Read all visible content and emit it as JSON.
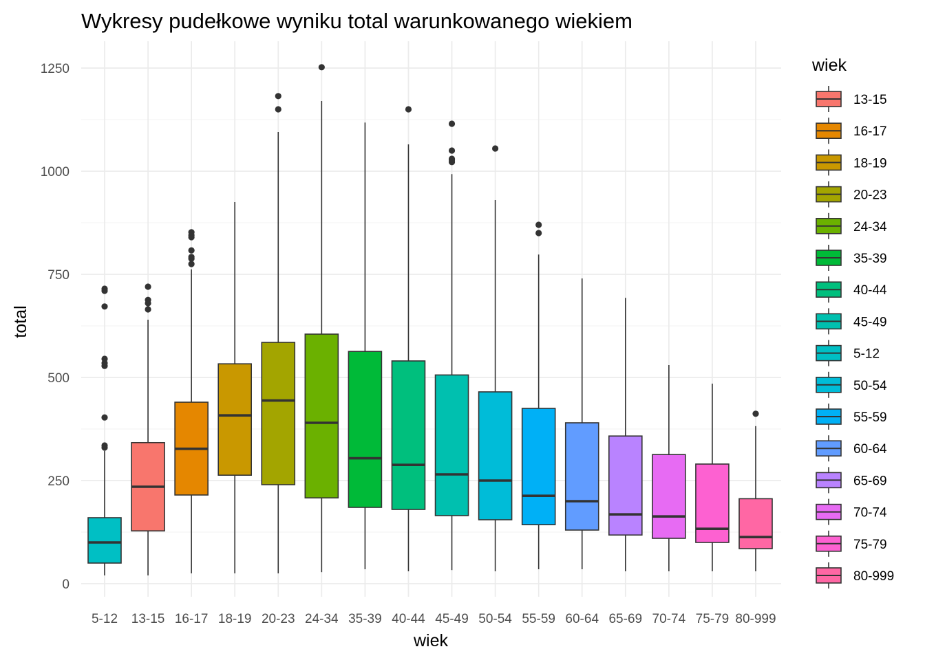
{
  "chart_data": {
    "type": "boxplot",
    "title": "Wykresy pudełkowe wyniku total warunkowanego wiekiem",
    "xlabel": "wiek",
    "ylabel": "total",
    "ylim": [
      -20,
      1280
    ],
    "yticks": [
      0,
      250,
      500,
      750,
      1000,
      1250
    ],
    "ytick_labels": [
      "0",
      "250",
      "500",
      "750",
      "1000",
      "1250"
    ],
    "grid": true,
    "legend": {
      "title": "wiek",
      "placement": "right",
      "entries": [
        "13-15",
        "16-17",
        "18-19",
        "20-23",
        "24-34",
        "35-39",
        "40-44",
        "45-49",
        "5-12",
        "50-54",
        "55-59",
        "60-64",
        "65-69",
        "70-74",
        "75-79",
        "80-999"
      ]
    },
    "boxes": [
      {
        "category": "5-12",
        "color": "#00BFC4",
        "whisker_low": 20,
        "q1": 50,
        "median": 100,
        "q3": 160,
        "whisker_high": 322,
        "outliers": [
          330,
          335,
          403,
          528,
          535,
          545,
          672,
          710,
          715
        ]
      },
      {
        "category": "13-15",
        "color": "#F8766D",
        "whisker_low": 20,
        "q1": 128,
        "median": 235,
        "q3": 342,
        "whisker_high": 640,
        "outliers": [
          665,
          680,
          688,
          720
        ]
      },
      {
        "category": "16-17",
        "color": "#E58700",
        "whisker_low": 25,
        "q1": 215,
        "median": 327,
        "q3": 440,
        "whisker_high": 762,
        "outliers": [
          775,
          788,
          792,
          808,
          840,
          845,
          852
        ]
      },
      {
        "category": "18-19",
        "color": "#C99800",
        "whisker_low": 25,
        "q1": 263,
        "median": 408,
        "q3": 533,
        "whisker_high": 925,
        "outliers": []
      },
      {
        "category": "20-23",
        "color": "#A3A500",
        "whisker_low": 25,
        "q1": 240,
        "median": 444,
        "q3": 585,
        "whisker_high": 1095,
        "outliers": [
          1150,
          1182
        ]
      },
      {
        "category": "24-34",
        "color": "#6BB100",
        "whisker_low": 28,
        "q1": 208,
        "median": 390,
        "q3": 605,
        "whisker_high": 1170,
        "outliers": [
          1252
        ]
      },
      {
        "category": "35-39",
        "color": "#00BA38",
        "whisker_low": 35,
        "q1": 185,
        "median": 304,
        "q3": 563,
        "whisker_high": 1118,
        "outliers": []
      },
      {
        "category": "40-44",
        "color": "#00BF7D",
        "whisker_low": 30,
        "q1": 180,
        "median": 288,
        "q3": 540,
        "whisker_high": 1065,
        "outliers": [
          1150
        ]
      },
      {
        "category": "45-49",
        "color": "#00C0AF",
        "whisker_low": 33,
        "q1": 165,
        "median": 265,
        "q3": 506,
        "whisker_high": 993,
        "outliers": [
          1022,
          1027,
          1030,
          1050,
          1115
        ]
      },
      {
        "category": "50-54",
        "color": "#00BCD8",
        "whisker_low": 30,
        "q1": 155,
        "median": 250,
        "q3": 465,
        "whisker_high": 930,
        "outliers": [
          1055
        ]
      },
      {
        "category": "55-59",
        "color": "#00B0F6",
        "whisker_low": 35,
        "q1": 143,
        "median": 213,
        "q3": 425,
        "whisker_high": 798,
        "outliers": [
          850,
          870
        ]
      },
      {
        "category": "60-64",
        "color": "#619CFF",
        "whisker_low": 35,
        "q1": 130,
        "median": 200,
        "q3": 390,
        "whisker_high": 740,
        "outliers": []
      },
      {
        "category": "65-69",
        "color": "#B983FF",
        "whisker_low": 30,
        "q1": 118,
        "median": 168,
        "q3": 358,
        "whisker_high": 693,
        "outliers": []
      },
      {
        "category": "70-74",
        "color": "#E76BF3",
        "whisker_low": 30,
        "q1": 110,
        "median": 163,
        "q3": 313,
        "whisker_high": 530,
        "outliers": []
      },
      {
        "category": "75-79",
        "color": "#FD61D1",
        "whisker_low": 30,
        "q1": 100,
        "median": 133,
        "q3": 290,
        "whisker_high": 485,
        "outliers": []
      },
      {
        "category": "80-999",
        "color": "#FF67A4",
        "whisker_low": 30,
        "q1": 85,
        "median": 113,
        "q3": 206,
        "whisker_high": 382,
        "outliers": [
          412
        ]
      }
    ]
  }
}
